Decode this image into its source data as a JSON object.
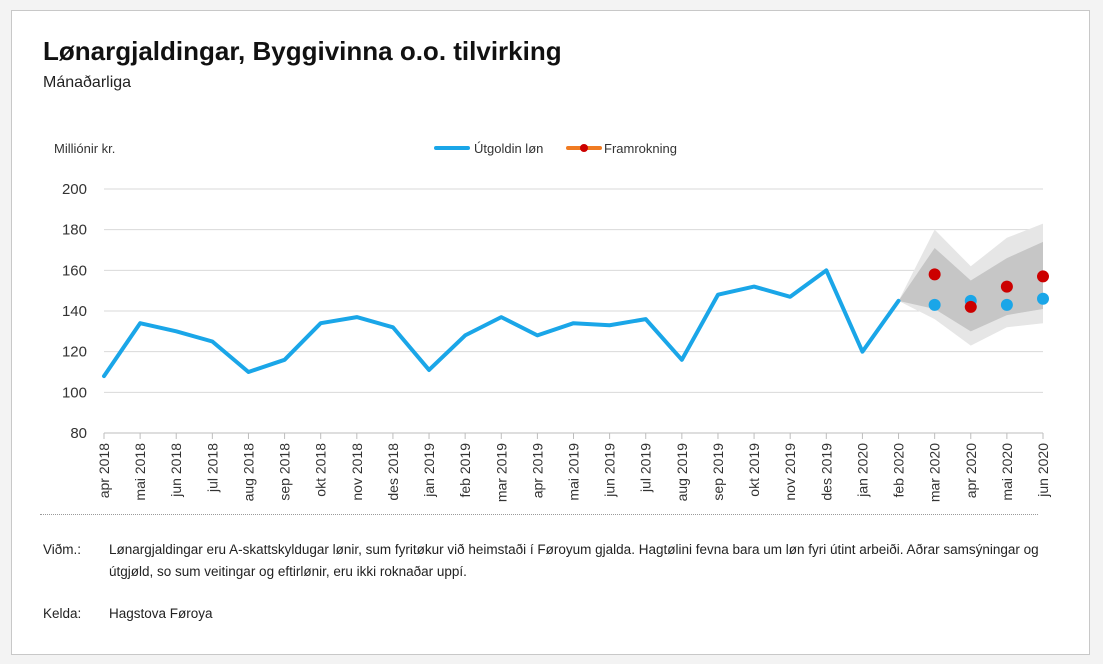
{
  "title": "Lønargjaldingar, Byggivinna o.o. tilvirking",
  "subtitle": "Mánaðarliga",
  "footer": {
    "note_label": "Viðm.:",
    "note_text": "Lønargjaldingar eru A-skattskyldugar lønir, sum fyritøkur við heimstaði í Føroyum gjalda. Hagtølini fevna bara um løn fyri útint arbeiði. Aðrar samsýningar og útgjøld, so sum veitingar og eftirlønir, eru ikki roknaðar uppí.",
    "source_label": "Kelda:",
    "source_text": "Hagstova Føroya"
  },
  "chart_data": {
    "type": "line",
    "ylabel": "Milliónir kr.",
    "ylim": [
      80,
      200
    ],
    "yticks": [
      80,
      100,
      120,
      140,
      160,
      180,
      200
    ],
    "grid": true,
    "legend_position": "top-center",
    "categories": [
      "apr 2018",
      "mai 2018",
      "jun 2018",
      "jul 2018",
      "aug 2018",
      "sep 2018",
      "okt 2018",
      "nov 2018",
      "des 2018",
      "jan 2019",
      "feb 2019",
      "mar 2019",
      "apr 2019",
      "mai 2019",
      "jun 2019",
      "jul 2019",
      "aug 2019",
      "sep 2019",
      "okt 2019",
      "nov 2019",
      "des 2019",
      "jan 2020",
      "feb 2020",
      "mar 2020",
      "apr 2020",
      "mai 2020",
      "jun 2020"
    ],
    "series": [
      {
        "name": "Útgoldin løn",
        "color": "#1aa6e8",
        "values": [
          108,
          134,
          130,
          125,
          110,
          116,
          134,
          137,
          132,
          111,
          128,
          137,
          128,
          134,
          133,
          136,
          116,
          148,
          152,
          147,
          160,
          120,
          145,
          null,
          null,
          null,
          null
        ]
      },
      {
        "name": "Framrokning",
        "color": "#cc0000",
        "legend_line_color": "#f07b22",
        "values": [
          null,
          null,
          null,
          null,
          null,
          null,
          null,
          null,
          null,
          null,
          null,
          null,
          null,
          null,
          null,
          null,
          null,
          null,
          null,
          null,
          null,
          null,
          null,
          158,
          142,
          152,
          157
        ]
      }
    ],
    "actual_points": {
      "color": "#1aa6e8",
      "values": [
        null,
        null,
        null,
        null,
        null,
        null,
        null,
        null,
        null,
        null,
        null,
        null,
        null,
        null,
        null,
        null,
        null,
        null,
        null,
        null,
        null,
        null,
        null,
        143,
        145,
        143,
        146
      ]
    },
    "bands": {
      "categories": [
        "feb 2020",
        "mar 2020",
        "apr 2020",
        "mai 2020",
        "jun 2020"
      ],
      "outer_upper": [
        145,
        180,
        162,
        176,
        183
      ],
      "outer_lower": [
        145,
        136,
        123,
        132,
        134
      ],
      "inner_upper": [
        145,
        171,
        155,
        166,
        174
      ],
      "inner_lower": [
        145,
        141,
        130,
        138,
        141
      ],
      "outer_color": "#e6e6e6",
      "inner_color": "#c6c6c6"
    }
  }
}
